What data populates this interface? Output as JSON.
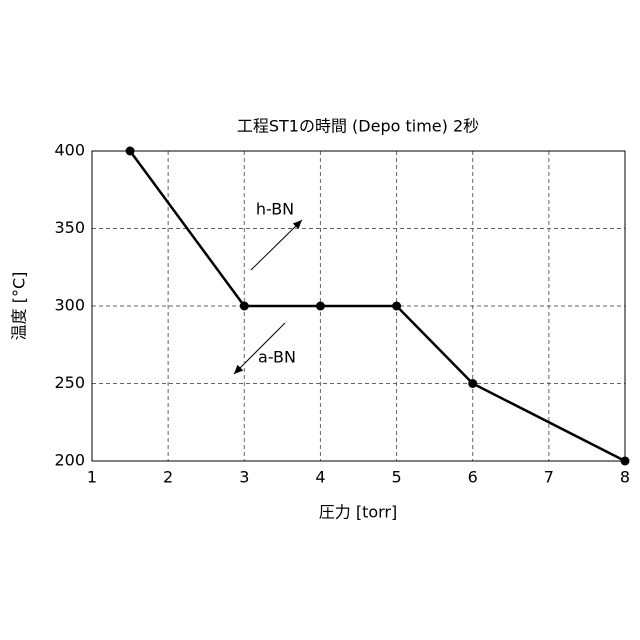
{
  "chart_data": {
    "type": "line",
    "title": "工程ST1の時間 (Depo time) 2秒",
    "x_label": "圧力 [torr]",
    "y_label": "温度 [°C]",
    "x": [
      1.5,
      3,
      4,
      5,
      6,
      8
    ],
    "series": [
      {
        "name": "",
        "color": "#000000",
        "values": [
          400,
          300,
          300,
          300,
          250,
          200
        ]
      }
    ],
    "xlim": [
      1,
      8
    ],
    "xticks": [
      1,
      2,
      3,
      4,
      5,
      6,
      7,
      8
    ],
    "ylim": [
      200,
      400
    ],
    "yticks": [
      200,
      250,
      300,
      350,
      400
    ],
    "grid": true,
    "annotations": [
      "h-BN",
      "a-BN"
    ]
  }
}
